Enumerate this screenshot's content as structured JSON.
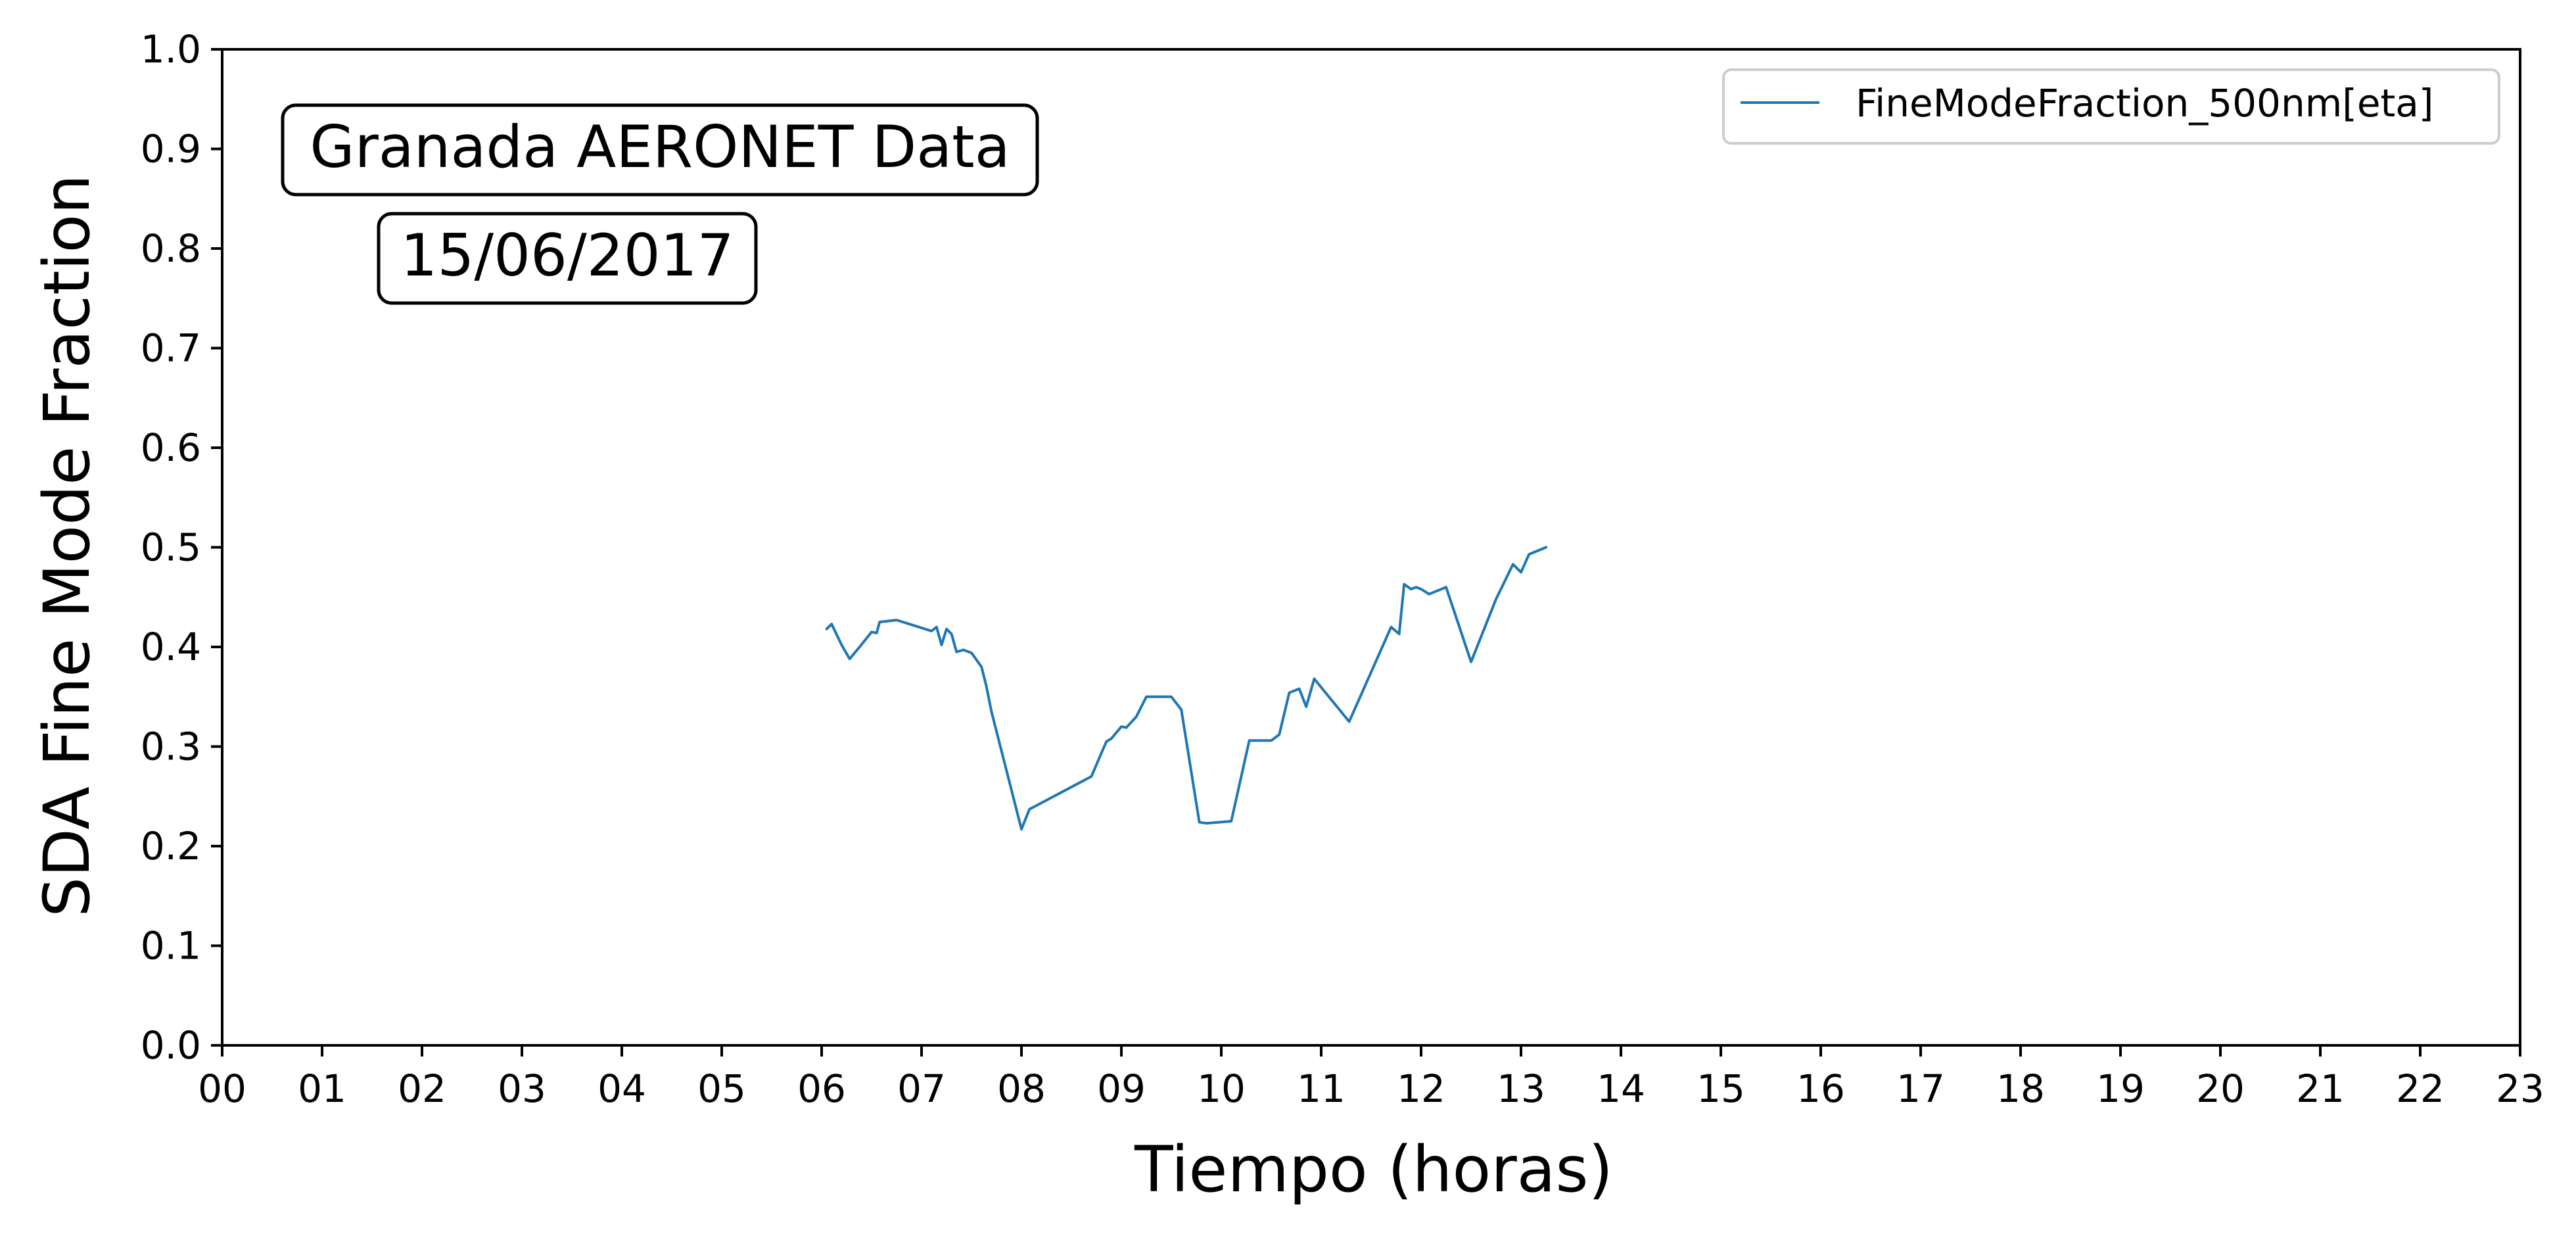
{
  "chart_data": {
    "type": "line",
    "xlabel": "Tiempo (horas)",
    "ylabel": "SDA Fine Mode Fraction",
    "xlim": [
      0,
      23
    ],
    "ylim": [
      0.0,
      1.0
    ],
    "x_ticks": [
      "00",
      "01",
      "02",
      "03",
      "04",
      "05",
      "06",
      "07",
      "08",
      "09",
      "10",
      "11",
      "12",
      "13",
      "14",
      "15",
      "16",
      "17",
      "18",
      "19",
      "20",
      "21",
      "22",
      "23"
    ],
    "y_ticks": [
      "0.0",
      "0.1",
      "0.2",
      "0.3",
      "0.4",
      "0.5",
      "0.6",
      "0.7",
      "0.8",
      "0.9",
      "1.0"
    ],
    "grid": false,
    "legend_position": "top-right",
    "annotations": [
      "Granada AERONET Data",
      "15/06/2017"
    ],
    "series": [
      {
        "name": "FineModeFraction_500nm[eta]",
        "color": "#1f77b4",
        "x": [
          6.05,
          6.1,
          6.2,
          6.28,
          6.38,
          6.5,
          6.55,
          6.58,
          6.75,
          7.1,
          7.15,
          7.2,
          7.25,
          7.3,
          7.35,
          7.42,
          7.5,
          7.6,
          7.65,
          7.7,
          8.0,
          8.08,
          8.7,
          8.85,
          8.9,
          9.0,
          9.05,
          9.15,
          9.25,
          9.5,
          9.6,
          9.78,
          9.85,
          10.1,
          10.28,
          10.5,
          10.58,
          10.68,
          10.78,
          10.85,
          10.93,
          11.28,
          11.7,
          11.78,
          11.83,
          11.9,
          11.95,
          12.0,
          12.08,
          12.25,
          12.5,
          12.75,
          12.92,
          13.0,
          13.08,
          13.25
        ],
        "y": [
          0.418,
          0.423,
          0.402,
          0.388,
          0.4,
          0.415,
          0.414,
          0.425,
          0.427,
          0.416,
          0.42,
          0.402,
          0.418,
          0.413,
          0.395,
          0.397,
          0.394,
          0.38,
          0.36,
          0.335,
          0.217,
          0.237,
          0.27,
          0.305,
          0.308,
          0.32,
          0.319,
          0.33,
          0.35,
          0.35,
          0.337,
          0.224,
          0.223,
          0.225,
          0.306,
          0.306,
          0.312,
          0.354,
          0.358,
          0.34,
          0.368,
          0.325,
          0.42,
          0.413,
          0.463,
          0.458,
          0.46,
          0.458,
          0.453,
          0.46,
          0.385,
          0.448,
          0.483,
          0.475,
          0.493,
          0.5
        ]
      }
    ]
  }
}
